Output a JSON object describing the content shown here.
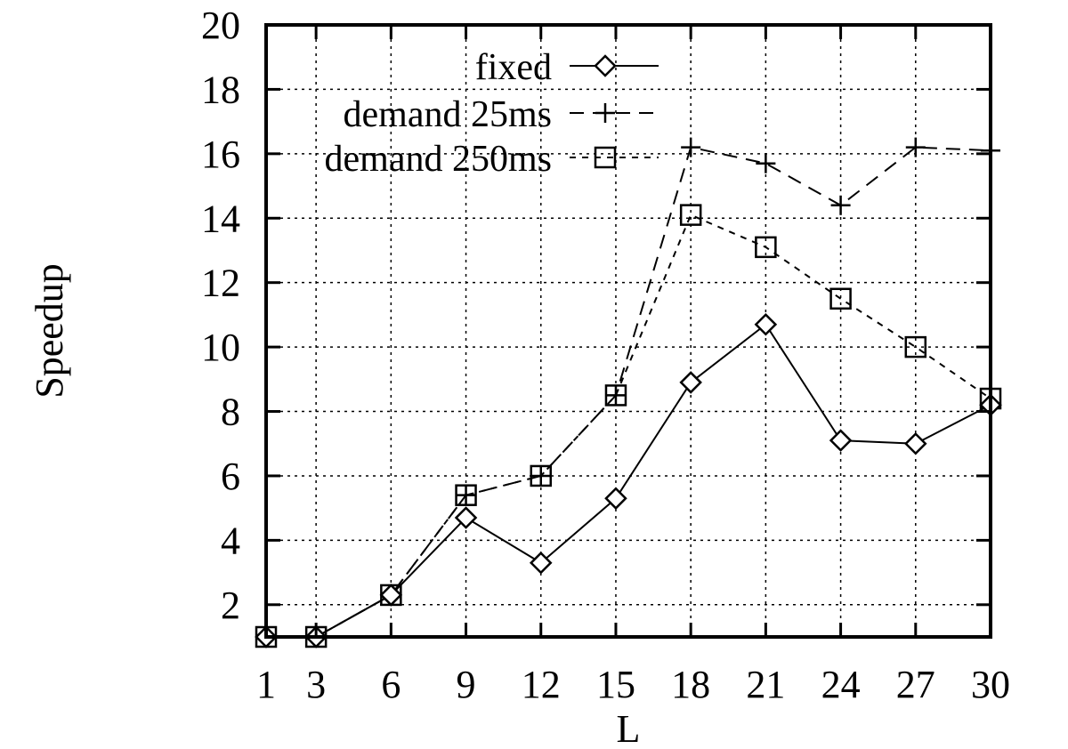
{
  "chart_data": {
    "type": "line",
    "title": "",
    "xlabel": "L",
    "ylabel": "Speedup",
    "xlim": [
      1,
      30
    ],
    "ylim": [
      1,
      20
    ],
    "x_ticks": [
      1,
      3,
      6,
      9,
      12,
      15,
      18,
      21,
      24,
      27,
      30
    ],
    "y_ticks": [
      2,
      4,
      6,
      8,
      10,
      12,
      14,
      16,
      18,
      20
    ],
    "grid": true,
    "legend_position": "top-center",
    "x": [
      1,
      3,
      6,
      9,
      12,
      15,
      18,
      21,
      24,
      27,
      30
    ],
    "series": [
      {
        "name": "fixed",
        "marker": "diamond",
        "line": "solid",
        "values": [
          1,
          1,
          2.3,
          4.7,
          3.3,
          5.3,
          8.9,
          10.7,
          7.1,
          7.0,
          8.2
        ]
      },
      {
        "name": "demand 25ms",
        "marker": "plus",
        "line": "dashed",
        "values": [
          1,
          1,
          2.3,
          5.4,
          6.0,
          8.5,
          16.2,
          15.7,
          14.4,
          16.2,
          16.1
        ]
      },
      {
        "name": "demand 250ms",
        "marker": "square",
        "line": "dotted",
        "values": [
          1,
          1,
          2.3,
          5.4,
          6.0,
          8.5,
          14.1,
          13.1,
          11.5,
          10.0,
          8.4
        ]
      }
    ]
  }
}
